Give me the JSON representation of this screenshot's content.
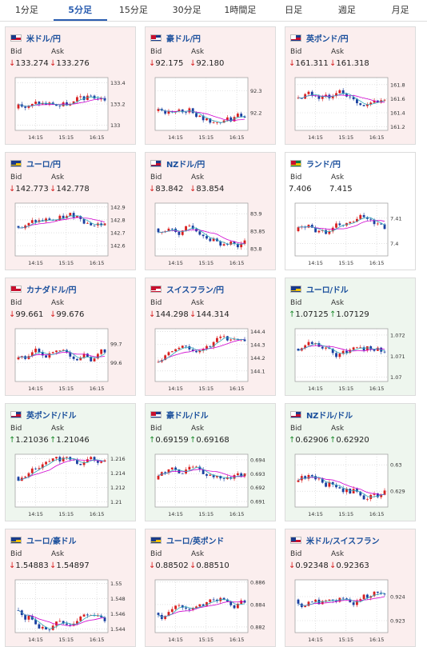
{
  "tabs": [
    "1分足",
    "5分足",
    "15分足",
    "30分足",
    "1時間足",
    "日足",
    "週足",
    "月足"
  ],
  "active_tab": 1,
  "labels": {
    "bid": "Bid",
    "ask": "Ask"
  },
  "colors": {
    "down_bg": "#fbeeee",
    "up_bg": "#eef6ee",
    "down_arrow": "#d82020",
    "up_arrow": "#1a8a2a",
    "bull": "#d82020",
    "bear": "#1a3fa0",
    "ma1": "#d000d0",
    "ma2": "#2fa8b8"
  },
  "cards": [
    {
      "pair": "米ドル/円",
      "flag": "us-flag",
      "trend": "down",
      "bid": "133.274",
      "ask": "133.276",
      "chart_data": {
        "type": "candlestick",
        "x_ticks": [
          "14:15",
          "15:15",
          "16:15"
        ],
        "y_ticks": [
          "133.4",
          "133.2",
          "133"
        ],
        "ylim": [
          132.95,
          133.45
        ]
      }
    },
    {
      "pair": "豪ドル/円",
      "flag": "au-flag",
      "trend": "down",
      "bid": "92.175",
      "ask": "92.180",
      "chart_data": {
        "type": "candlestick",
        "x_ticks": [
          "14:15",
          "15:15",
          "16:15"
        ],
        "y_ticks": [
          "92.3",
          "92.2"
        ],
        "ylim": [
          92.12,
          92.36
        ]
      }
    },
    {
      "pair": "英ポンド/円",
      "flag": "gb-flag",
      "trend": "down",
      "bid": "161.311",
      "ask": "161.318",
      "chart_data": {
        "type": "candlestick",
        "x_ticks": [
          "14:15",
          "15:15",
          "16:15"
        ],
        "y_ticks": [
          "161.8",
          "161.6",
          "161.4",
          "161.2"
        ],
        "ylim": [
          161.15,
          161.9
        ]
      }
    },
    {
      "pair": "ユーロ/円",
      "flag": "eu-flag",
      "trend": "down",
      "bid": "142.773",
      "ask": "142.778",
      "chart_data": {
        "type": "candlestick",
        "x_ticks": [
          "14:15",
          "15:15",
          "16:15"
        ],
        "y_ticks": [
          "142.9",
          "142.8",
          "142.7",
          "142.6"
        ],
        "ylim": [
          142.52,
          142.93
        ]
      }
    },
    {
      "pair": "NZドル/円",
      "flag": "nz-flag",
      "trend": "down",
      "bid": "83.842",
      "ask": "83.854",
      "chart_data": {
        "type": "candlestick",
        "x_ticks": [
          "14:15",
          "15:15",
          "16:15"
        ],
        "y_ticks": [
          "83.9",
          "83.85",
          "83.8"
        ],
        "ylim": [
          83.78,
          83.93
        ]
      }
    },
    {
      "pair": "ランド/円",
      "flag": "za-flag",
      "trend": "flat",
      "bid": "7.406",
      "ask": "7.415",
      "chart_data": {
        "type": "candlestick",
        "x_ticks": [
          "14:15",
          "15:15",
          "16:15"
        ],
        "y_ticks": [
          "7.41",
          "7.4"
        ],
        "ylim": [
          7.395,
          7.416
        ]
      }
    },
    {
      "pair": "カナダドル/円",
      "flag": "ca-flag",
      "trend": "down",
      "bid": "99.661",
      "ask": "99.676",
      "chart_data": {
        "type": "candlestick",
        "x_ticks": [
          "14:15",
          "15:15",
          "16:15"
        ],
        "y_ticks": [
          "99.7",
          "99.6"
        ],
        "ylim": [
          99.5,
          99.78
        ]
      }
    },
    {
      "pair": "スイスフラン/円",
      "flag": "ch-flag",
      "trend": "down",
      "bid": "144.298",
      "ask": "144.314",
      "chart_data": {
        "type": "candlestick",
        "x_ticks": [
          "14:15",
          "15:15",
          "16:15"
        ],
        "y_ticks": [
          "144.4",
          "144.3",
          "144.2",
          "144.1"
        ],
        "ylim": [
          144.02,
          144.42
        ]
      }
    },
    {
      "pair": "ユーロ/ドル",
      "flag": "eu-us-flag",
      "trend": "up",
      "bid": "1.07125",
      "ask": "1.07129",
      "chart_data": {
        "type": "candlestick",
        "x_ticks": [
          "14:15",
          "15:15",
          "16:15"
        ],
        "y_ticks": [
          "1.072",
          "1.071",
          "1.07"
        ],
        "ylim": [
          1.0698,
          1.0723
        ]
      }
    },
    {
      "pair": "英ポンド/ドル",
      "flag": "gb-us-flag",
      "trend": "up",
      "bid": "1.21036",
      "ask": "1.21046",
      "chart_data": {
        "type": "candlestick",
        "x_ticks": [
          "14:15",
          "15:15",
          "16:15"
        ],
        "y_ticks": [
          "1.216",
          "1.214",
          "1.212",
          "1.21"
        ],
        "ylim": [
          1.2093,
          1.2166
        ]
      }
    },
    {
      "pair": "豪ドル/ドル",
      "flag": "au-us-flag",
      "trend": "up",
      "bid": "0.69159",
      "ask": "0.69168",
      "chart_data": {
        "type": "candlestick",
        "x_ticks": [
          "14:15",
          "15:15",
          "16:15"
        ],
        "y_ticks": [
          "0.694",
          "0.693",
          "0.692",
          "0.691"
        ],
        "ylim": [
          0.6906,
          0.6944
        ]
      }
    },
    {
      "pair": "NZドル/ドル",
      "flag": "nz-us-flag",
      "trend": "up",
      "bid": "0.62906",
      "ask": "0.62920",
      "chart_data": {
        "type": "candlestick",
        "x_ticks": [
          "14:15",
          "15:15",
          "16:15"
        ],
        "y_ticks": [
          "0.63",
          "0.629"
        ],
        "ylim": [
          0.6284,
          0.6304
        ]
      }
    },
    {
      "pair": "ユーロ/豪ドル",
      "flag": "eu-au-flag",
      "trend": "down",
      "bid": "1.54883",
      "ask": "1.54897",
      "chart_data": {
        "type": "candlestick",
        "x_ticks": [
          "14:15",
          "15:15",
          "16:15"
        ],
        "y_ticks": [
          "1.55",
          "1.548",
          "1.546",
          "1.544"
        ],
        "ylim": [
          1.5435,
          1.5505
        ]
      }
    },
    {
      "pair": "ユーロ/英ポンド",
      "flag": "eu-gb-flag",
      "trend": "down",
      "bid": "0.88502",
      "ask": "0.88510",
      "chart_data": {
        "type": "candlestick",
        "x_ticks": [
          "14:15",
          "15:15",
          "16:15"
        ],
        "y_ticks": [
          "0.886",
          "0.884",
          "0.882"
        ],
        "ylim": [
          0.8815,
          0.8862
        ]
      }
    },
    {
      "pair": "米ドル/スイスフラン",
      "flag": "us-ch-flag",
      "trend": "down",
      "bid": "0.92348",
      "ask": "0.92363",
      "chart_data": {
        "type": "candlestick",
        "x_ticks": [
          "14:15",
          "15:15",
          "16:15"
        ],
        "y_ticks": [
          "0.924",
          "0.923"
        ],
        "ylim": [
          0.9225,
          0.9247
        ]
      }
    }
  ]
}
